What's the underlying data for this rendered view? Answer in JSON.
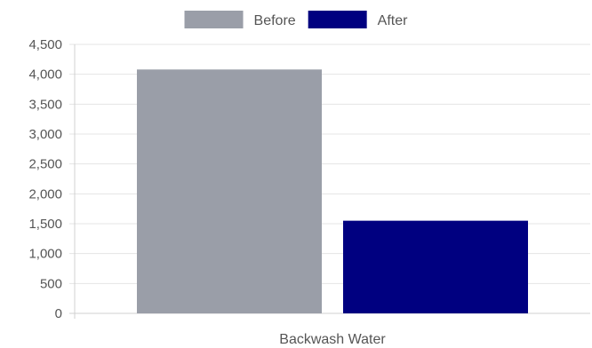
{
  "chart_data": {
    "type": "bar",
    "categories": [
      "Backwash Water"
    ],
    "series": [
      {
        "name": "Before",
        "values": [
          4080
        ],
        "color": "#9a9ea8"
      },
      {
        "name": "After",
        "values": [
          1550
        ],
        "color": "#000080"
      }
    ],
    "ylim": [
      0,
      4500
    ],
    "ytick_labels": [
      "0",
      "500",
      "1,000",
      "1,500",
      "2,000",
      "2,500",
      "3,000",
      "3,500",
      "4,000",
      "4,500"
    ],
    "legend_position": "top-center",
    "grid": true
  }
}
